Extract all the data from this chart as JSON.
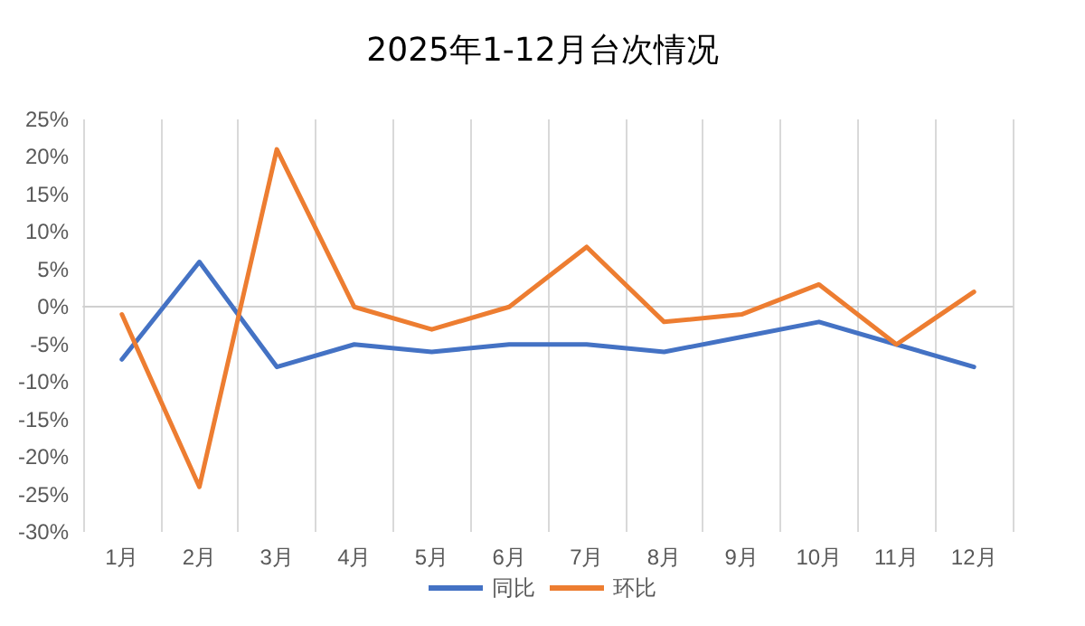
{
  "chart_data": {
    "type": "line",
    "title": "2025年1-12月台次情况",
    "categories": [
      "1月",
      "2月",
      "3月",
      "4月",
      "5月",
      "6月",
      "7月",
      "8月",
      "9月",
      "10月",
      "11月",
      "12月"
    ],
    "series": [
      {
        "name": "同比",
        "color": "#4472c4",
        "values": [
          -7,
          6,
          -8,
          -5,
          -6,
          -5,
          -5,
          -6,
          -4,
          -2,
          -5,
          -8
        ]
      },
      {
        "name": "环比",
        "color": "#ed7d31",
        "values": [
          -1,
          -24,
          21,
          0,
          -3,
          0,
          8,
          -2,
          -1,
          3,
          -5,
          2
        ]
      }
    ],
    "ylim": [
      -30,
      25
    ],
    "yticks": [
      {
        "value": -30,
        "label": "-30%"
      },
      {
        "value": -25,
        "label": "-25%"
      },
      {
        "value": -20,
        "label": "-20%"
      },
      {
        "value": -15,
        "label": "-15%"
      },
      {
        "value": -10,
        "label": "-10%"
      },
      {
        "value": -5,
        "label": "-5%"
      },
      {
        "value": 0,
        "label": "0%"
      },
      {
        "value": 5,
        "label": "5%"
      },
      {
        "value": 10,
        "label": "10%"
      },
      {
        "value": 15,
        "label": "15%"
      },
      {
        "value": 20,
        "label": "20%"
      },
      {
        "value": 25,
        "label": "25%"
      }
    ],
    "grid": "x",
    "legend": "bottom",
    "marker": "none",
    "line_style": "solid"
  }
}
